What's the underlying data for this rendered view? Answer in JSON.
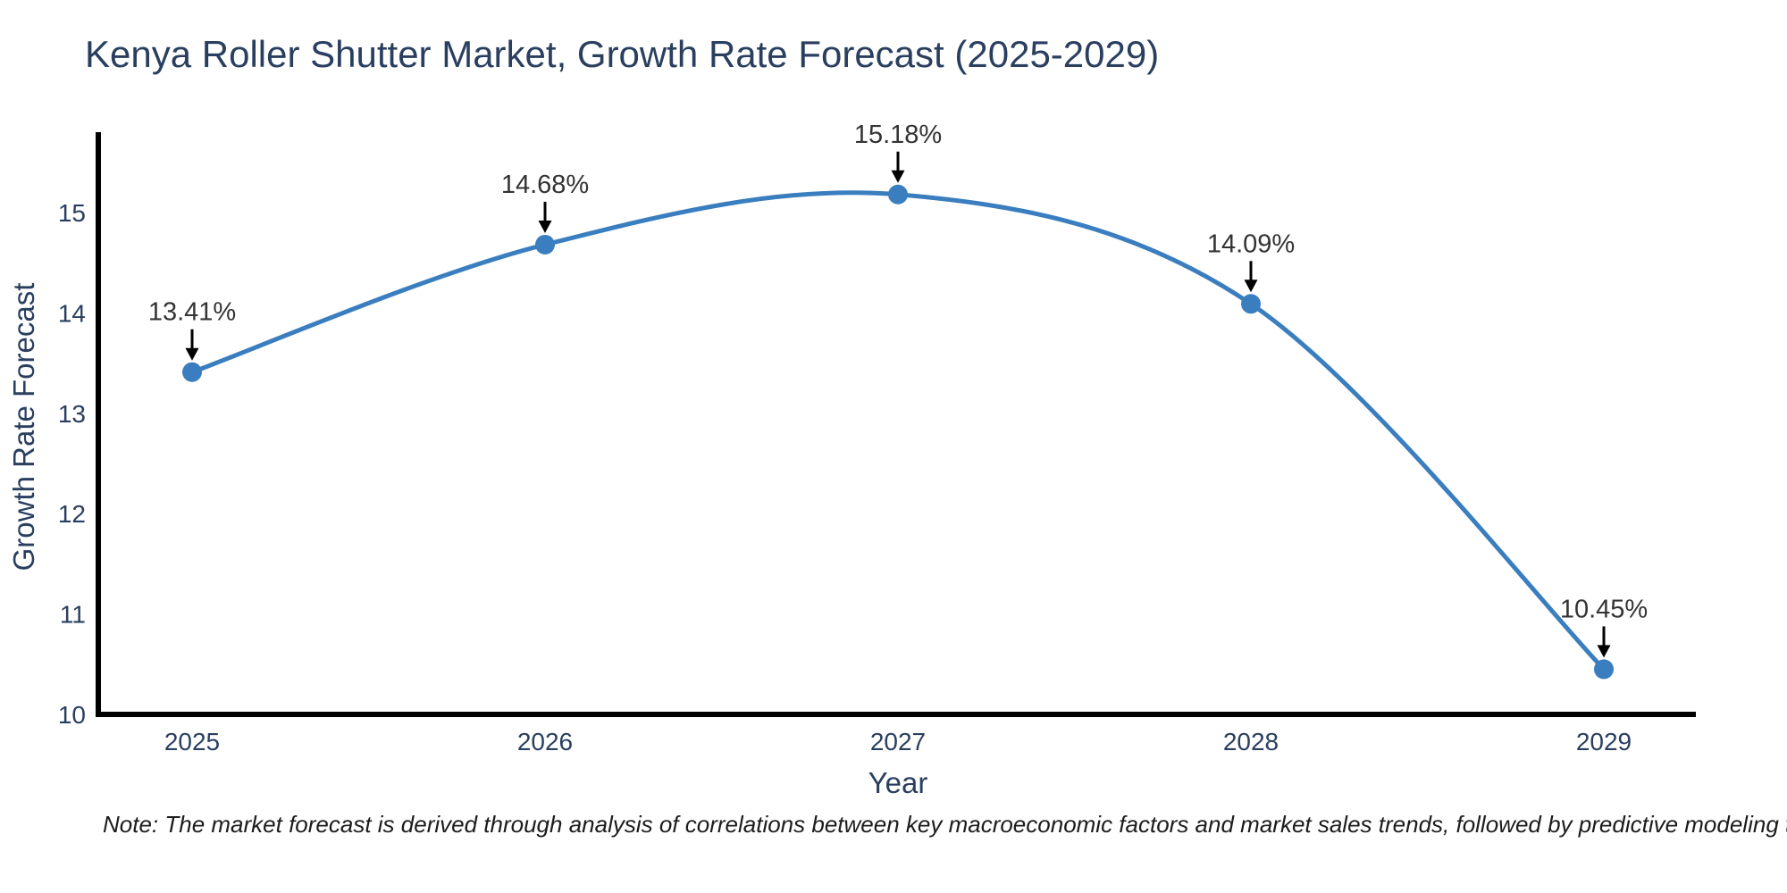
{
  "title": "Kenya Roller Shutter Market, Growth Rate Forecast (2025-2029)",
  "note": "Note: The market forecast is derived through analysis of correlations between key macroeconomic factors and market sales trends, followed by predictive modeling to project future sales.",
  "chart_data": {
    "type": "line",
    "line_shape": "spline",
    "title": "Kenya Roller Shutter Market, Growth Rate Forecast (2025-2029)",
    "x": [
      2025,
      2026,
      2027,
      2028,
      2029
    ],
    "values": [
      13.41,
      14.68,
      15.18,
      14.09,
      10.45
    ],
    "point_labels": [
      "13.41%",
      "14.68%",
      "15.18%",
      "14.09%",
      "10.45%"
    ],
    "xlabel": "Year",
    "ylabel": "Growth Rate Forecast",
    "xticks": [
      "2025",
      "2026",
      "2027",
      "2028",
      "2029"
    ],
    "yticks": [
      10,
      11,
      12,
      13,
      14,
      15
    ],
    "ylim": [
      10,
      15.8
    ],
    "grid": false,
    "legend_position": "none",
    "colors": {
      "line": "#3a7ebf",
      "marker": "#3a7ebf",
      "axis": "#000000",
      "tick_text": "#2a3f5f",
      "axis_title_text": "#2a3f5f",
      "annotation_text": "#333333",
      "annotation_arrow": "#000000",
      "title_text": "#2a3f5f",
      "background": "#ffffff"
    }
  }
}
